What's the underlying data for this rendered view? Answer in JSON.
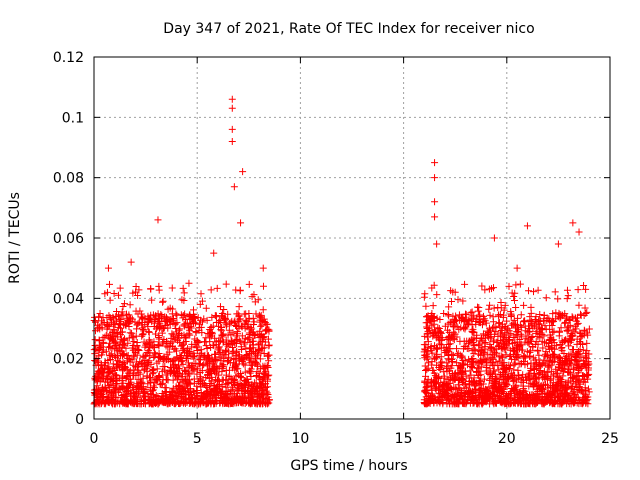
{
  "chart_data": {
    "type": "scatter",
    "title": "Day 347 of 2021, Rate Of TEC Index for receiver nico",
    "xlabel": "GPS time / hours",
    "ylabel": "ROTI / TECUs",
    "xlim": [
      0,
      25
    ],
    "ylim": [
      0,
      0.12
    ],
    "xticks": [
      0,
      5,
      10,
      15,
      20,
      25
    ],
    "yticks": [
      0,
      0.02,
      0.04,
      0.06,
      0.08,
      0.1,
      0.12
    ],
    "xtick_labels": [
      "0",
      "5",
      "10",
      "15",
      "20",
      "25"
    ],
    "ytick_labels": [
      "0",
      "0.02",
      "0.04",
      "0.06",
      "0.08",
      "0.1",
      "0.12"
    ],
    "grid": true,
    "marker": "+",
    "color": "#ff0000",
    "series": [
      {
        "name": "ROTI",
        "coverage_hours": [
          [
            0.0,
            8.5
          ],
          [
            16.0,
            24.0
          ]
        ],
        "typical_range": [
          0.005,
          0.03
        ],
        "peaks": [
          {
            "x": 0.7,
            "y": 0.05
          },
          {
            "x": 1.8,
            "y": 0.052
          },
          {
            "x": 3.1,
            "y": 0.066
          },
          {
            "x": 4.6,
            "y": 0.045
          },
          {
            "x": 5.8,
            "y": 0.055
          },
          {
            "x": 6.7,
            "y": 0.106
          },
          {
            "x": 6.7,
            "y": 0.103
          },
          {
            "x": 6.7,
            "y": 0.096
          },
          {
            "x": 6.7,
            "y": 0.092
          },
          {
            "x": 7.2,
            "y": 0.082
          },
          {
            "x": 6.8,
            "y": 0.077
          },
          {
            "x": 7.1,
            "y": 0.065
          },
          {
            "x": 8.2,
            "y": 0.05
          },
          {
            "x": 16.5,
            "y": 0.085
          },
          {
            "x": 16.5,
            "y": 0.08
          },
          {
            "x": 16.5,
            "y": 0.072
          },
          {
            "x": 16.5,
            "y": 0.067
          },
          {
            "x": 16.6,
            "y": 0.058
          },
          {
            "x": 17.5,
            "y": 0.042
          },
          {
            "x": 19.4,
            "y": 0.06
          },
          {
            "x": 20.5,
            "y": 0.05
          },
          {
            "x": 21.0,
            "y": 0.064
          },
          {
            "x": 22.5,
            "y": 0.058
          },
          {
            "x": 23.2,
            "y": 0.065
          },
          {
            "x": 23.5,
            "y": 0.062
          }
        ]
      }
    ]
  }
}
